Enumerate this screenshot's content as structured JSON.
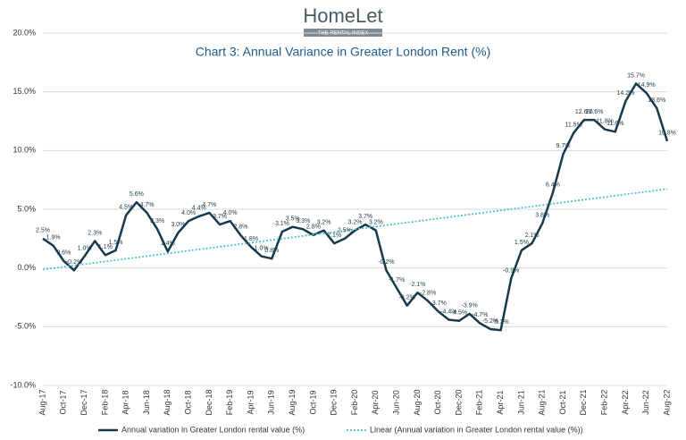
{
  "header": {
    "logo": "HomeLet",
    "tagline": "THE RENTAL INDEX"
  },
  "chart_data": {
    "type": "line",
    "title": "Chart 3: Annual Variance in Greater London Rent (%)",
    "categories": [
      "Aug-17",
      null,
      "Oct-17",
      null,
      "Dec-17",
      null,
      "Feb-18",
      null,
      "Apr-18",
      null,
      "Jun-18",
      null,
      "Aug-18",
      null,
      "Oct-18",
      null,
      "Dec-18",
      null,
      "Feb-19",
      null,
      "Apr-19",
      null,
      "Jun-19",
      null,
      "Aug-19",
      null,
      "Oct-19",
      null,
      "Dec-19",
      null,
      "Feb-20",
      null,
      "Apr-20",
      null,
      "Jun-20",
      null,
      "Aug-20",
      null,
      "Oct-20",
      null,
      "Dec-20",
      null,
      "Feb-21",
      null,
      "Apr-21",
      null,
      "Jun-21",
      null,
      "Aug-21",
      null,
      "Oct-21",
      null,
      "Dec-21",
      null,
      "Feb-22",
      null,
      "Apr-22",
      null,
      "Jun-22",
      null,
      "Aug-22"
    ],
    "series": [
      {
        "name": "Annual variation in Greater London rental value (%)",
        "color": "#17394d",
        "values": [
          2.5,
          1.9,
          0.6,
          -0.2,
          1.0,
          2.3,
          1.1,
          1.5,
          4.5,
          5.6,
          4.7,
          3.3,
          1.4,
          3.0,
          4.0,
          4.4,
          4.7,
          3.7,
          4.0,
          2.8,
          1.8,
          1.0,
          0.8,
          3.1,
          3.5,
          3.3,
          2.8,
          3.2,
          2.1,
          2.5,
          3.2,
          3.7,
          3.2,
          -0.2,
          -1.7,
          -3.2,
          -2.1,
          -2.8,
          -3.7,
          -4.4,
          -4.5,
          -3.9,
          -4.7,
          -5.2,
          -5.3,
          -0.9,
          1.5,
          2.1,
          3.8,
          6.4,
          9.7,
          11.5,
          12.6,
          12.6,
          11.8,
          11.6,
          14.2,
          15.7,
          14.9,
          13.6,
          10.8
        ],
        "value_labels": [
          "2.5%",
          "1.9%",
          "0.6%",
          "-0.2%",
          "1.0%",
          "2.3%",
          "1.1%",
          "1.5%",
          "4.5%",
          "5.6%",
          "4.7%",
          "3.3%",
          "1.4%",
          "3.0%",
          "4.0%",
          "4.4%",
          "4.7%",
          "3.7%",
          "4.0%",
          "2.8%",
          "1.8%",
          "1.0%",
          "0.8%",
          "3.1%",
          "3.5%",
          "3.3%",
          "2.8%",
          "3.2%",
          "2.1%",
          "2.5%",
          "3.2%",
          "3.7%",
          "3.2%",
          "-0.2%",
          "-1.7%",
          "-3.2%",
          "-2.1%",
          "-2.8%",
          "-3.7%",
          "-4.4%",
          "-4.5%",
          "-3.9%",
          "-4.7%",
          "-5.2%",
          "-5.3%",
          "-0.9%",
          "1.5%",
          "2.1%",
          "3.8%",
          "6.4%",
          "9.7%",
          "11.5%",
          "12.6%",
          "12.6%",
          "11.8%",
          "11.6%",
          "14.2%",
          "15.7%",
          "14.9%",
          "13.6%",
          "10.8%"
        ]
      }
    ],
    "trendline": {
      "name": "Linear (Annual variation in Greater London rental value (%))",
      "color": "#4dc3c9"
    },
    "ylim": [
      -10,
      20
    ],
    "yticks": [
      {
        "value": -10,
        "label": "-10.0%"
      },
      {
        "value": -5,
        "label": "-5.0%"
      },
      {
        "value": 0,
        "label": "0.0%"
      },
      {
        "value": 5,
        "label": "5.0%"
      },
      {
        "value": 10,
        "label": "10.0%"
      },
      {
        "value": 15,
        "label": "15.0%"
      },
      {
        "value": 20,
        "label": "20.0%"
      }
    ],
    "grid": true
  }
}
